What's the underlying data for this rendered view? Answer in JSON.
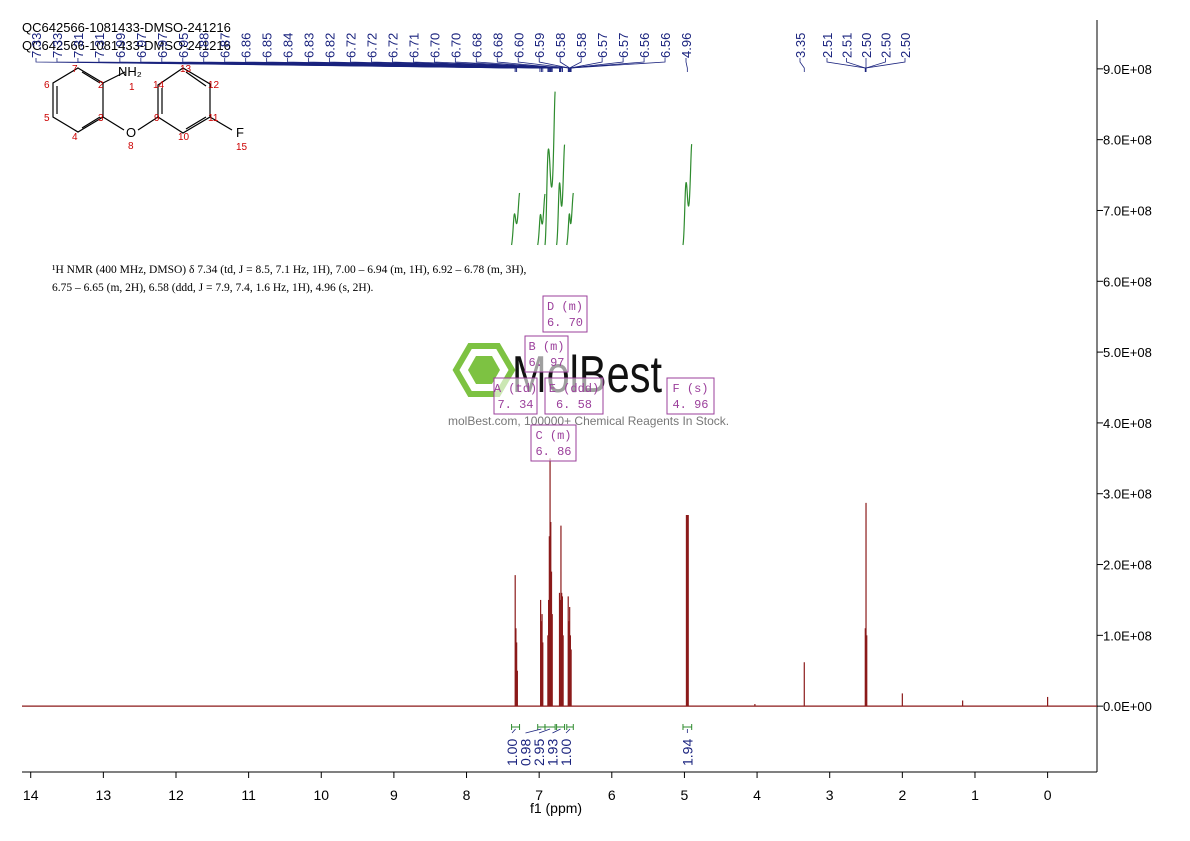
{
  "chart_data": {
    "type": "line",
    "title": "QC642566-1081433-DMSO-241216",
    "subtitle": "QC642566-1081433-DMSO-241216",
    "x_label": "f1 (ppm)",
    "xlim": [
      14.12,
      -0.68
    ],
    "xticks": [
      14,
      13,
      12,
      11,
      10,
      9,
      8,
      7,
      6,
      5,
      4,
      3,
      2,
      1,
      0
    ],
    "ylim": [
      -93000000,
      969000000
    ],
    "yticks": [
      {
        "value": 0,
        "label": "0.0E+00"
      },
      {
        "value": 100000000,
        "label": "1.0E+08"
      },
      {
        "value": 200000000,
        "label": "2.0E+08"
      },
      {
        "value": 300000000,
        "label": "3.0E+08"
      },
      {
        "value": 400000000,
        "label": "4.0E+08"
      },
      {
        "value": 500000000,
        "label": "5.0E+08"
      },
      {
        "value": 600000000,
        "label": "6.0E+08"
      },
      {
        "value": 700000000,
        "label": "7.0E+08"
      },
      {
        "value": 800000000,
        "label": "8.0E+08"
      },
      {
        "value": 900000000,
        "label": "9.0E+08"
      }
    ],
    "series": [
      {
        "color": "#8b1a1a",
        "x": [
          7.33,
          7.32,
          7.31,
          7.3,
          6.98,
          6.97,
          6.96,
          6.95,
          6.88,
          6.87,
          6.86,
          6.85,
          6.84,
          6.83,
          6.82,
          6.72,
          6.71,
          6.7,
          6.69,
          6.68,
          6.67,
          6.6,
          6.59,
          6.58,
          6.57,
          6.56,
          4.96,
          4.03,
          3.35,
          2.51,
          2.5,
          2.49,
          2.0,
          1.17,
          0
        ],
        "values": [
          185000000,
          110000000,
          90000000,
          50000000,
          150000000,
          120000000,
          130000000,
          90000000,
          100000000,
          150000000,
          240000000,
          350000000,
          260000000,
          190000000,
          130000000,
          160000000,
          150000000,
          255000000,
          160000000,
          155000000,
          100000000,
          155000000,
          120000000,
          140000000,
          100000000,
          80000000,
          270000000,
          3000000,
          62000000,
          110000000,
          287000000,
          100000000,
          18000000,
          8000000,
          13000000
        ]
      }
    ],
    "peak_labels": [
      7.33,
      7.33,
      7.31,
      7.31,
      6.99,
      6.97,
      6.97,
      6.95,
      6.88,
      6.87,
      6.86,
      6.85,
      6.84,
      6.83,
      6.82,
      6.72,
      6.72,
      6.72,
      6.71,
      {
        "value": 6.7,
        "label": "6.70"
      },
      {
        "value": 6.7,
        "label": "6.70"
      },
      6.68,
      6.68,
      {
        "value": 6.6,
        "label": "6.60"
      },
      6.59,
      6.58,
      6.58,
      6.57,
      6.57,
      6.56,
      6.56,
      4.96,
      3.35,
      2.51,
      2.51,
      {
        "value": 2.5,
        "label": "2.50"
      },
      {
        "value": 2.5,
        "label": "2.50"
      },
      {
        "value": 2.5,
        "label": "2.50"
      }
    ],
    "integrals": {
      "color": "#2e8b2e",
      "values": [
        1,
        0.98,
        2.95,
        1.93,
        1,
        1.94
      ],
      "value_labels": [
        "1.00",
        "0.98",
        "2.95",
        "1.93",
        "1.00",
        "1.94"
      ],
      "ranges": [
        [
          7.38,
          7.27
        ],
        [
          7.02,
          6.92
        ],
        [
          6.92,
          6.78
        ],
        [
          6.76,
          6.65
        ],
        [
          6.62,
          6.53
        ],
        [
          5.02,
          4.9
        ]
      ]
    },
    "nmr_text": [
      "¹H NMR (400 MHz, DMSO) δ 7.34 (td, J = 8.5, 7.1 Hz, 1H), 7.00 – 6.94 (m, 1H), 6.92 – 6.78 (m, 3H),",
      "6.75 – 6.65 (m, 2H), 6.58 (ddd, J = 7.9, 7.4, 1.6 Hz, 1H), 4.96 (s, 2H)."
    ],
    "multiplets": [
      {
        "label": "D (m)",
        "shift": "6. 70"
      },
      {
        "label": "B (m)",
        "shift": "6. 97"
      },
      {
        "label": "A (td)",
        "shift": "7. 34"
      },
      {
        "label": "E (ddd)",
        "shift": "6. 58"
      },
      {
        "label": "F (s)",
        "shift": "4. 96"
      },
      {
        "label": "C (m)",
        "shift": "6. 86"
      }
    ]
  },
  "structure": {
    "atoms": [
      "NH₂",
      "1",
      "2",
      "3",
      "4",
      "5",
      "6",
      "7",
      "O",
      "8",
      "9",
      "10",
      "11",
      "12",
      "13",
      "14",
      "F",
      "15"
    ]
  },
  "watermark": {
    "brand": "MolBest",
    "tagline": "molBest.com, 100000+ Chemical Reagents In Stock."
  }
}
